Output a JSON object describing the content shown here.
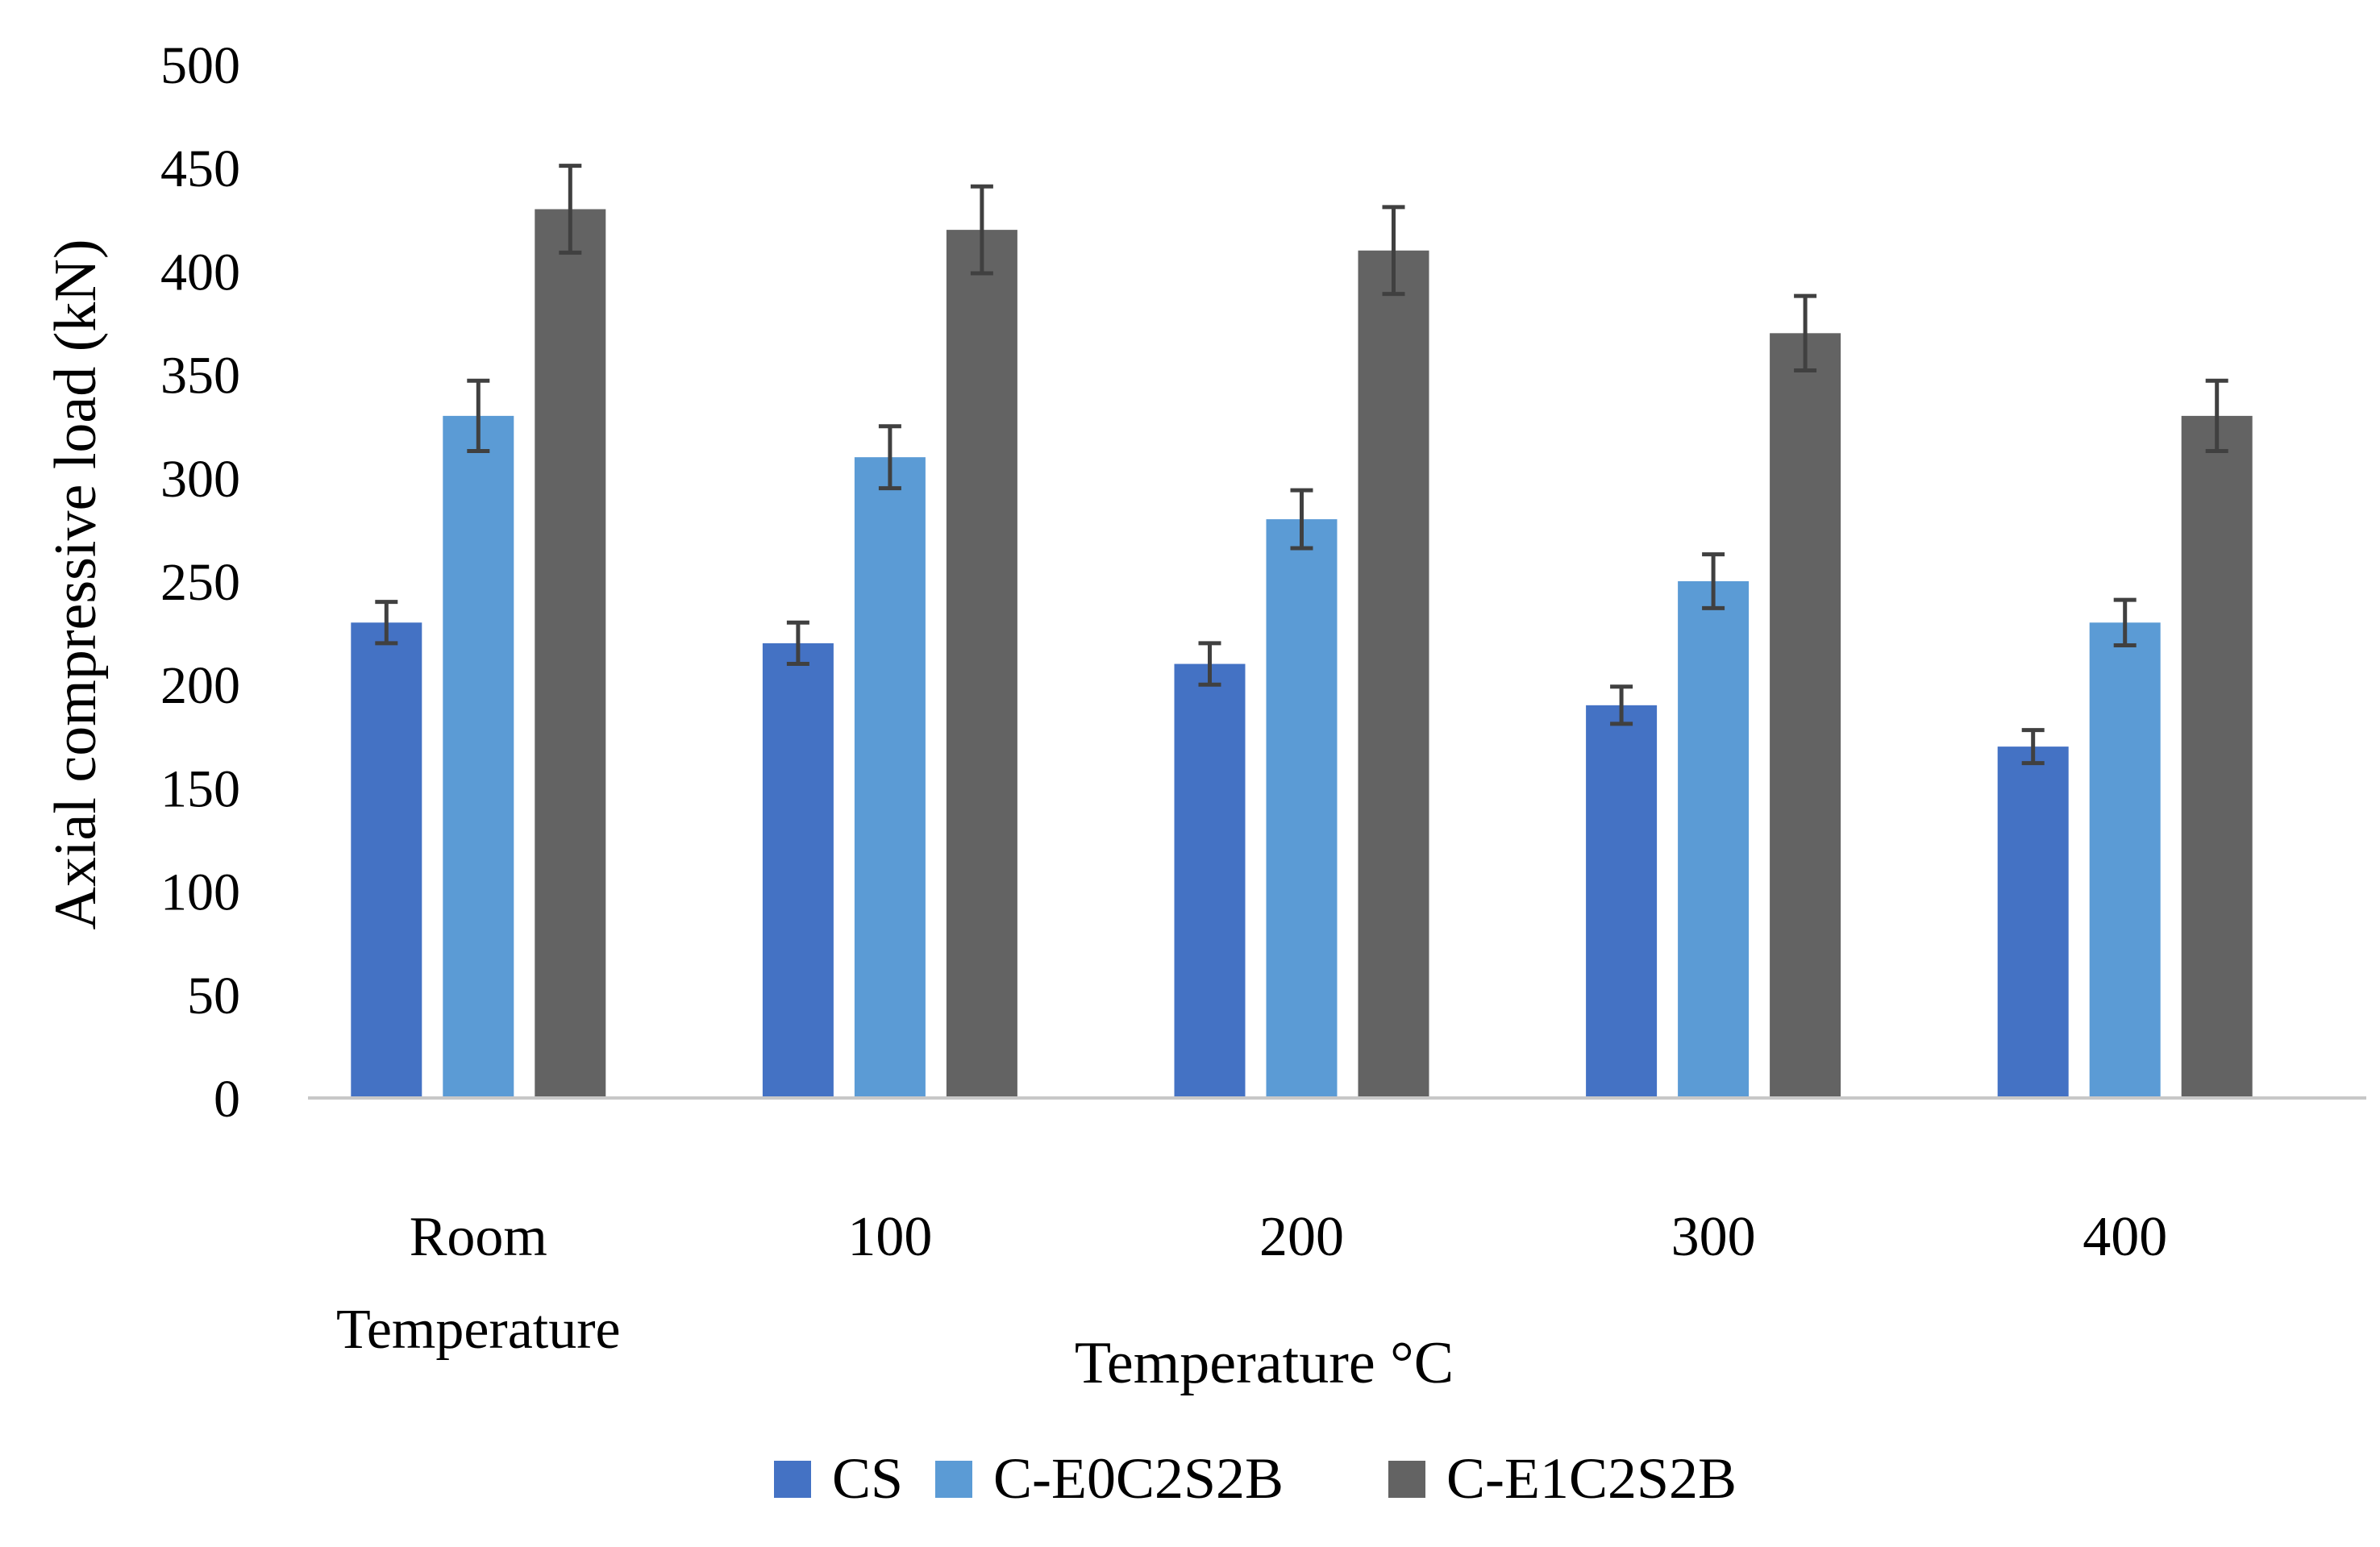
{
  "chart_data": {
    "type": "bar",
    "title": "",
    "xlabel": "Temperature °C",
    "ylabel": "Axial compressive load (kN)",
    "ylim": [
      0,
      500
    ],
    "ytick_step": 50,
    "grid": false,
    "legend_position": "bottom",
    "categories": [
      [
        "Room",
        "Temperature"
      ],
      [
        "100"
      ],
      [
        "200"
      ],
      [
        "300"
      ],
      [
        "400"
      ]
    ],
    "series": [
      {
        "name": "CS",
        "color": "#4472C4",
        "values": [
          230,
          220,
          210,
          190,
          170
        ],
        "errors": [
          10,
          10,
          10,
          9,
          8
        ]
      },
      {
        "name": "C-E0C2S2B",
        "color": "#5B9BD5",
        "values": [
          330,
          310,
          280,
          250,
          230
        ],
        "errors": [
          17,
          15,
          14,
          13,
          11
        ]
      },
      {
        "name": "C-E1C2S2B",
        "color": "#636363",
        "values": [
          430,
          420,
          410,
          370,
          330
        ],
        "errors": [
          21,
          21,
          21,
          18,
          17
        ]
      }
    ],
    "error_bar_color": "#404040",
    "axis_color": "#C8C8C8"
  }
}
